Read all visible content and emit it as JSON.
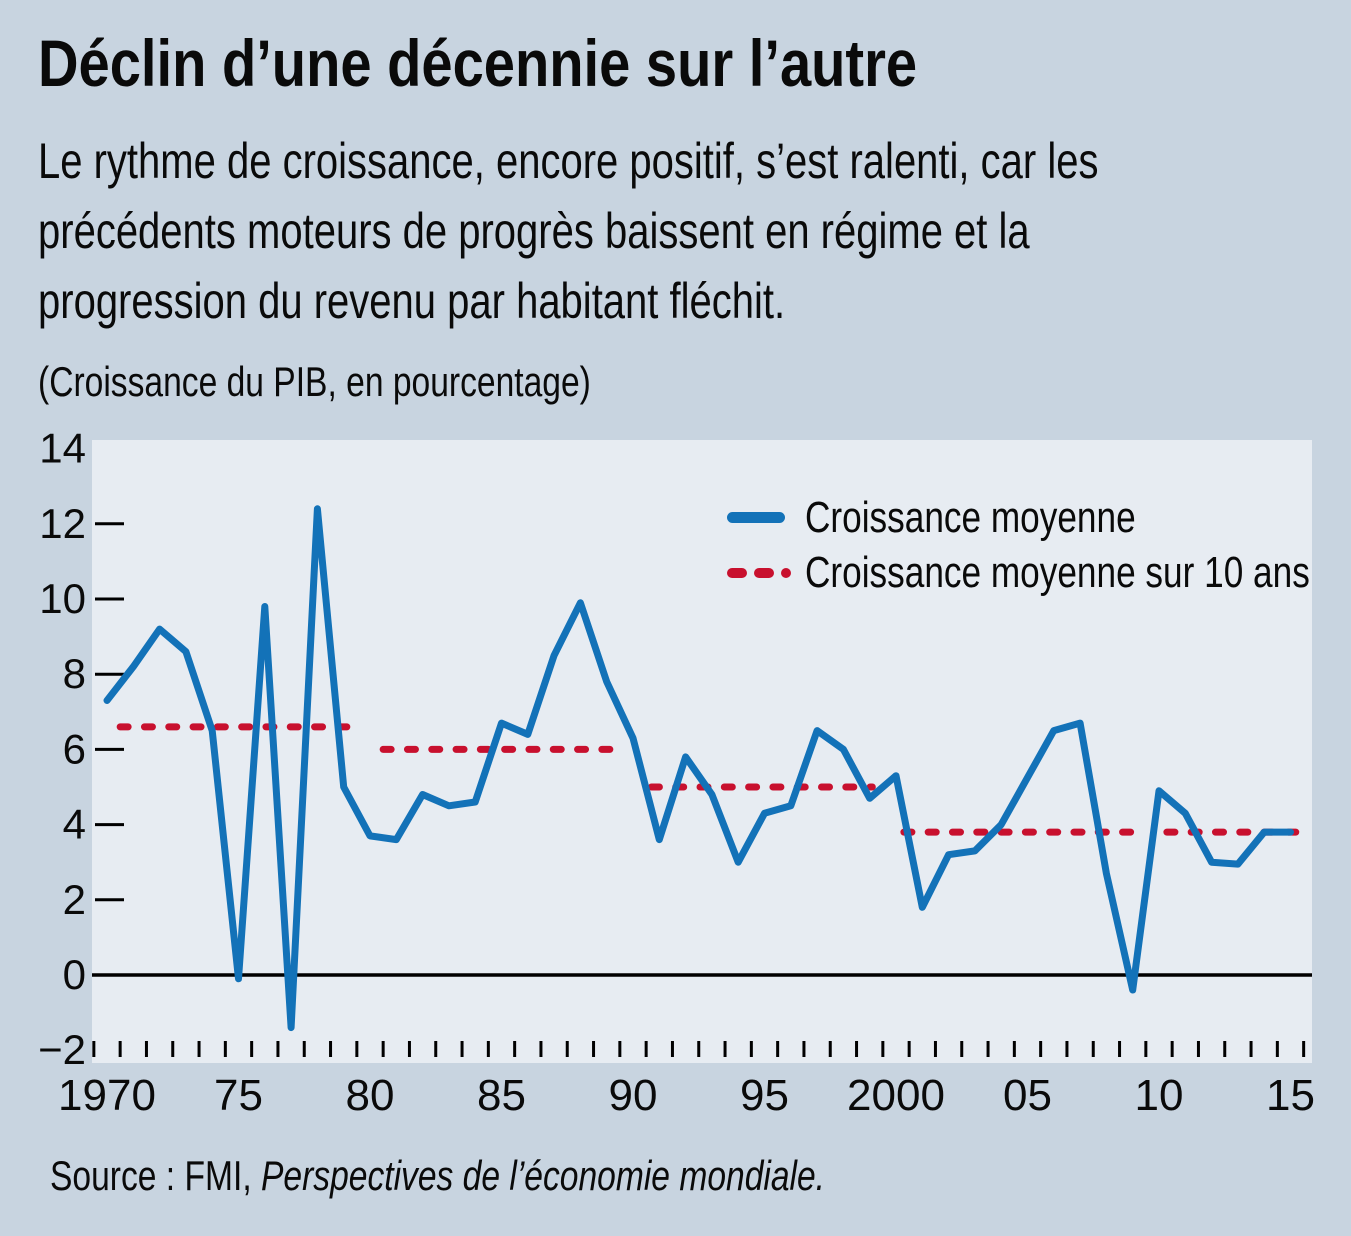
{
  "title": "Déclin d’une décennie sur l’autre",
  "subtitle_lines": [
    "Le rythme de croissance, encore positif, s’est ralenti, car les",
    "précédents moteurs de progrès baissent en régime et la",
    "progression du revenu par habitant fléchit."
  ],
  "units_label": "(Croissance du PIB, en pourcentage)",
  "legend": {
    "series1_label": "Croissance moyenne",
    "series2_label": "Croissance moyenne sur 10 ans"
  },
  "source": {
    "prefix": "Source : FMI, ",
    "publication_italic": "Perspectives de l’économie mondiale."
  },
  "colors": {
    "page_background": "#c8d4e0",
    "plot_background": "#e7ecf2",
    "line_blue": "#1372b8",
    "dash_red": "#c8102e",
    "axis_black": "#000000",
    "text": "#0a0a0a"
  },
  "chart_data": {
    "type": "line",
    "title": "Déclin d’une décennie sur l’autre",
    "ylabel": "(Croissance du PIB, en pourcentage)",
    "ylim": [
      -2,
      14
    ],
    "grid": false,
    "legend_position": "top-right-inside",
    "years": [
      1970,
      1971,
      1972,
      1973,
      1974,
      1975,
      1976,
      1977,
      1978,
      1979,
      1980,
      1981,
      1982,
      1983,
      1984,
      1985,
      1986,
      1987,
      1988,
      1989,
      1990,
      1991,
      1992,
      1993,
      1994,
      1995,
      1996,
      1997,
      1998,
      1999,
      2000,
      2001,
      2002,
      2003,
      2004,
      2005,
      2006,
      2007,
      2008,
      2009,
      2010,
      2011,
      2012,
      2013,
      2014,
      2015
    ],
    "series": [
      {
        "name": "Croissance moyenne",
        "style": "solid",
        "values": [
          7.3,
          8.2,
          9.2,
          8.6,
          6.5,
          -0.1,
          9.8,
          -1.4,
          12.4,
          5.0,
          3.7,
          3.6,
          4.8,
          4.5,
          4.6,
          6.7,
          6.4,
          8.5,
          9.9,
          7.8,
          6.3,
          3.6,
          5.8,
          4.8,
          3.0,
          4.3,
          4.5,
          6.5,
          6.0,
          4.7,
          5.3,
          1.8,
          3.2,
          3.3,
          4.0,
          5.25,
          6.5,
          6.7,
          2.7,
          -0.4,
          4.9,
          4.3,
          3.0,
          2.95,
          3.8,
          3.8
        ]
      },
      {
        "name": "Croissance moyenne sur 10 ans",
        "style": "dashed",
        "segments": [
          {
            "from_year": 1970.5,
            "to_year": 1979.2,
            "value": 6.6
          },
          {
            "from_year": 1980.5,
            "to_year": 1989.4,
            "value": 6.0
          },
          {
            "from_year": 1990.7,
            "to_year": 1999.1,
            "value": 5.0
          },
          {
            "from_year": 2000.3,
            "to_year": 2009.4,
            "value": 3.8
          },
          {
            "from_year": 2010.3,
            "to_year": 2015.2,
            "value": 3.8
          }
        ]
      }
    ],
    "y_ticks": [
      {
        "value": 14,
        "label": "14",
        "mark": false
      },
      {
        "value": 12,
        "label": "12",
        "mark": true
      },
      {
        "value": 10,
        "label": "10",
        "mark": true
      },
      {
        "value": 8,
        "label": "8",
        "mark": true
      },
      {
        "value": 6,
        "label": "6",
        "mark": true
      },
      {
        "value": 4,
        "label": "4",
        "mark": true
      },
      {
        "value": 2,
        "label": "2",
        "mark": true
      },
      {
        "value": 0,
        "label": "0",
        "mark": false
      },
      {
        "value": -2,
        "label": "−2",
        "mark": false
      }
    ],
    "x_tick_labels": [
      {
        "year": 1970,
        "label": "1970"
      },
      {
        "year": 1975,
        "label": "75"
      },
      {
        "year": 1980,
        "label": "80"
      },
      {
        "year": 1985,
        "label": "85"
      },
      {
        "year": 1990,
        "label": "90"
      },
      {
        "year": 1995,
        "label": "95"
      },
      {
        "year": 2000,
        "label": "2000"
      },
      {
        "year": 2005,
        "label": "05"
      },
      {
        "year": 2010,
        "label": "10"
      },
      {
        "year": 2015,
        "label": "15"
      }
    ],
    "minor_ticks": {
      "from_year": 1969.5,
      "to_year": 2015.5,
      "step": 1
    }
  }
}
